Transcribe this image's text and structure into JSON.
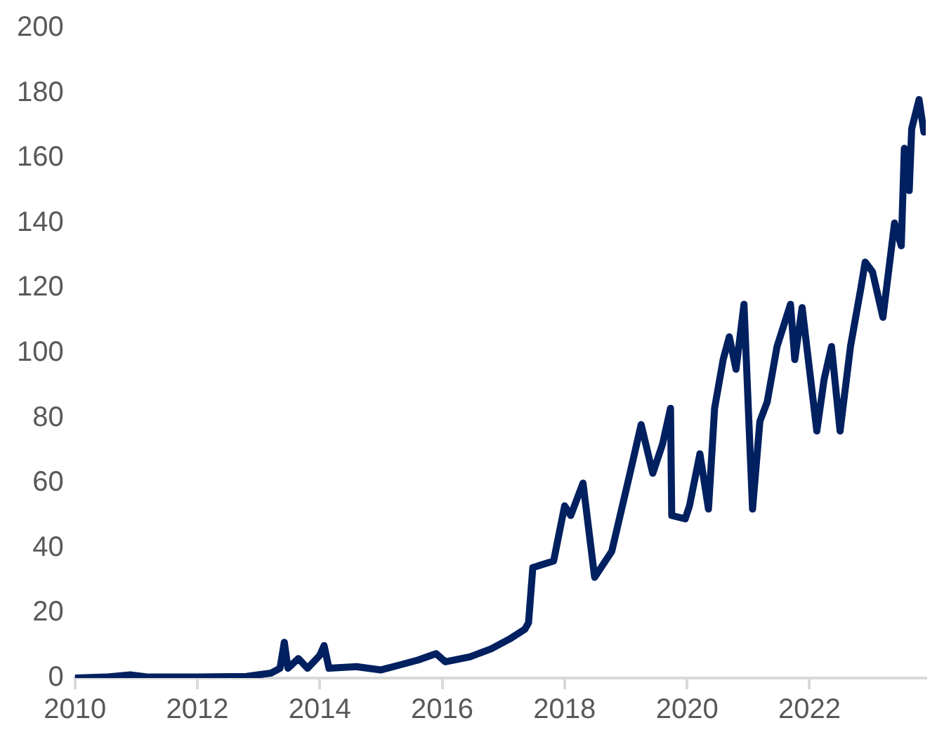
{
  "chart_data": {
    "type": "line",
    "xlim": [
      2010,
      2023.9
    ],
    "xticks": [
      2010,
      2012,
      2014,
      2016,
      2018,
      2020,
      2022
    ],
    "ylim": [
      0,
      200
    ],
    "yticks": [
      0,
      20,
      40,
      60,
      80,
      100,
      120,
      140,
      160,
      180,
      200
    ],
    "grid": false,
    "legend": false,
    "marker": "none",
    "line_style": "solid",
    "series": [
      {
        "color": "#002060",
        "x": [
          2010,
          2010.5,
          2010.9,
          2011.2,
          2012,
          2012.8,
          2013.2,
          2013.35,
          2013.42,
          2013.48,
          2013.65,
          2013.8,
          2014.0,
          2014.07,
          2014.15,
          2014.6,
          2015.0,
          2015.3,
          2015.6,
          2015.9,
          2016.05,
          2016.45,
          2016.8,
          2017.1,
          2017.35,
          2017.41,
          2017.48,
          2017.82,
          2018.0,
          2018.1,
          2018.3,
          2018.49,
          2018.77,
          2019.08,
          2019.25,
          2019.44,
          2019.6,
          2019.73,
          2019.75,
          2019.97,
          2020.04,
          2020.21,
          2020.35,
          2020.45,
          2020.59,
          2020.69,
          2020.8,
          2020.93,
          2021.07,
          2021.19,
          2021.31,
          2021.47,
          2021.69,
          2021.76,
          2021.88,
          2022.12,
          2022.24,
          2022.36,
          2022.5,
          2022.67,
          2022.84,
          2022.91,
          2023.03,
          2023.2,
          2023.39,
          2023.5,
          2023.55,
          2023.63,
          2023.67,
          2023.79,
          2023.87
        ],
        "values": [
          0,
          0.3,
          1,
          0.3,
          0.3,
          0.5,
          1.5,
          3,
          11,
          3,
          6,
          3,
          7,
          10,
          3,
          3.5,
          2.5,
          4,
          5.5,
          7.5,
          5,
          6.5,
          9,
          12,
          15,
          17,
          34,
          36,
          53,
          50,
          60,
          31,
          39,
          64,
          78,
          63,
          72,
          83,
          50,
          49,
          53,
          69,
          52,
          83,
          98,
          105,
          95,
          115,
          52,
          79,
          85,
          102,
          115,
          98,
          114,
          76,
          92,
          102,
          76,
          102,
          120,
          128,
          125,
          111,
          140,
          133,
          163,
          150,
          169,
          178,
          168
        ]
      }
    ]
  }
}
